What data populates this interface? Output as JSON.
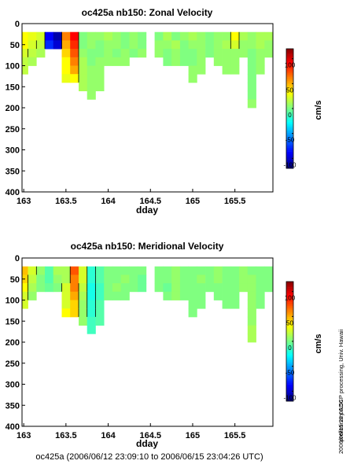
{
  "chart_data": [
    {
      "type": "heatmap",
      "title": "oc425a nb150: Zonal Velocity",
      "xlabel": "dday",
      "ylabel": "",
      "x_ticks": [
        "163",
        "163.5",
        "164",
        "164.5",
        "165",
        "165.5"
      ],
      "y_ticks": [
        "0",
        "50",
        "100",
        "150",
        "200",
        "250",
        "300",
        "350",
        "400"
      ],
      "xlim": [
        162.98,
        165.95
      ],
      "ylim": [
        400,
        0
      ],
      "colorbar": {
        "label": "cm/s",
        "ticks": [
          "100",
          "50",
          "0",
          "-50",
          "-100"
        ],
        "range": [
          -120,
          120
        ]
      },
      "x": [
        163.0,
        163.1,
        163.2,
        163.3,
        163.4,
        163.5,
        163.6,
        163.7,
        163.8,
        163.9,
        164.0,
        164.1,
        164.2,
        164.3,
        164.4,
        164.5,
        164.6,
        164.7,
        164.8,
        164.9,
        165.0,
        165.1,
        165.2,
        165.3,
        165.4,
        165.5,
        165.6,
        165.7,
        165.8,
        165.9
      ],
      "depth": [
        30,
        50,
        70,
        90,
        110,
        130,
        150,
        170,
        190,
        210
      ],
      "values": [
        [
          30,
          25,
          20,
          -90,
          -110,
          60,
          90,
          0,
          5,
          5,
          10,
          5,
          0,
          5,
          0,
          null,
          0,
          10,
          0,
          5,
          10,
          5,
          0,
          5,
          5,
          30,
          10,
          5,
          10,
          10
        ],
        [
          30,
          20,
          15,
          -80,
          -100,
          50,
          80,
          0,
          5,
          0,
          5,
          5,
          0,
          5,
          0,
          null,
          5,
          5,
          10,
          0,
          5,
          5,
          0,
          5,
          10,
          20,
          5,
          5,
          10,
          5
        ],
        [
          20,
          15,
          10,
          null,
          null,
          40,
          70,
          5,
          0,
          0,
          5,
          0,
          5,
          0,
          5,
          null,
          5,
          0,
          5,
          0,
          0,
          5,
          0,
          5,
          5,
          5,
          5,
          0,
          5,
          5
        ],
        [
          15,
          10,
          null,
          null,
          null,
          30,
          60,
          10,
          0,
          5,
          5,
          5,
          5,
          null,
          null,
          null,
          null,
          0,
          5,
          0,
          0,
          5,
          null,
          5,
          5,
          5,
          null,
          0,
          5,
          null
        ],
        [
          15,
          null,
          null,
          null,
          null,
          30,
          50,
          10,
          5,
          5,
          null,
          null,
          null,
          null,
          null,
          null,
          null,
          null,
          null,
          null,
          5,
          5,
          null,
          null,
          5,
          5,
          null,
          0,
          5,
          null
        ],
        [
          null,
          null,
          null,
          null,
          null,
          25,
          30,
          10,
          5,
          5,
          null,
          null,
          null,
          null,
          null,
          null,
          null,
          null,
          null,
          null,
          5,
          null,
          null,
          null,
          null,
          null,
          null,
          0,
          null,
          null
        ],
        [
          null,
          null,
          null,
          null,
          null,
          null,
          null,
          10,
          5,
          5,
          null,
          null,
          null,
          null,
          null,
          null,
          null,
          null,
          null,
          null,
          null,
          null,
          null,
          null,
          null,
          null,
          null,
          0,
          null,
          null
        ],
        [
          null,
          null,
          null,
          null,
          null,
          null,
          null,
          null,
          5,
          null,
          null,
          null,
          null,
          null,
          null,
          null,
          null,
          null,
          null,
          null,
          null,
          null,
          null,
          null,
          null,
          null,
          null,
          0,
          null,
          null
        ],
        [
          null,
          null,
          null,
          null,
          null,
          null,
          null,
          null,
          null,
          null,
          null,
          null,
          null,
          null,
          null,
          null,
          null,
          null,
          null,
          null,
          null,
          null,
          null,
          null,
          null,
          null,
          null,
          5,
          null,
          null
        ],
        [
          null,
          null,
          null,
          null,
          null,
          null,
          null,
          null,
          null,
          null,
          null,
          null,
          null,
          null,
          null,
          null,
          null,
          null,
          null,
          null,
          null,
          null,
          null,
          null,
          null,
          null,
          null,
          null,
          null,
          null
        ]
      ]
    },
    {
      "type": "heatmap",
      "title": "oc425a nb150: Meridional Velocity",
      "xlabel": "dday",
      "ylabel": "",
      "x_ticks": [
        "163",
        "163.5",
        "164",
        "164.5",
        "165",
        "165.5"
      ],
      "y_ticks": [
        "0",
        "50",
        "100",
        "150",
        "200",
        "250",
        "300",
        "350",
        "400"
      ],
      "xlim": [
        162.98,
        165.95
      ],
      "ylim": [
        400,
        0
      ],
      "colorbar": {
        "label": "cm/s",
        "ticks": [
          "100",
          "50",
          "0",
          "-50",
          "-100"
        ],
        "range": [
          -120,
          120
        ]
      },
      "x": [
        163.0,
        163.1,
        163.2,
        163.3,
        163.4,
        163.5,
        163.6,
        163.7,
        163.8,
        163.9,
        164.0,
        164.1,
        164.2,
        164.3,
        164.4,
        164.5,
        164.6,
        164.7,
        164.8,
        164.9,
        165.0,
        165.1,
        165.2,
        165.3,
        165.4,
        165.5,
        165.6,
        165.7,
        165.8,
        165.9
      ],
      "depth": [
        30,
        50,
        70,
        90,
        110,
        130,
        150,
        170,
        190,
        210
      ],
      "values": [
        [
          45,
          20,
          5,
          -10,
          10,
          10,
          70,
          20,
          -20,
          -10,
          0,
          0,
          0,
          0,
          0,
          null,
          0,
          0,
          5,
          0,
          0,
          0,
          0,
          5,
          0,
          0,
          5,
          0,
          0,
          0
        ],
        [
          40,
          15,
          0,
          -10,
          5,
          10,
          60,
          20,
          -20,
          -10,
          0,
          0,
          5,
          0,
          -5,
          null,
          0,
          0,
          5,
          0,
          0,
          5,
          0,
          5,
          0,
          0,
          5,
          5,
          0,
          0
        ],
        [
          30,
          10,
          0,
          -5,
          0,
          20,
          60,
          15,
          -25,
          -15,
          0,
          5,
          0,
          0,
          -5,
          null,
          0,
          -5,
          5,
          0,
          0,
          0,
          0,
          0,
          0,
          0,
          5,
          5,
          0,
          0
        ],
        [
          20,
          5,
          null,
          null,
          null,
          20,
          50,
          10,
          -25,
          -15,
          0,
          0,
          0,
          null,
          null,
          null,
          null,
          0,
          5,
          0,
          0,
          0,
          null,
          0,
          0,
          0,
          null,
          5,
          0,
          null
        ],
        [
          20,
          null,
          null,
          null,
          null,
          20,
          40,
          5,
          -20,
          -10,
          null,
          null,
          null,
          null,
          null,
          null,
          null,
          null,
          null,
          null,
          0,
          0,
          null,
          null,
          0,
          0,
          null,
          5,
          0,
          null
        ],
        [
          null,
          null,
          null,
          null,
          null,
          30,
          40,
          5,
          -20,
          -10,
          null,
          null,
          null,
          null,
          null,
          null,
          null,
          null,
          null,
          null,
          0,
          null,
          null,
          null,
          null,
          null,
          null,
          5,
          null,
          null
        ],
        [
          null,
          null,
          null,
          null,
          null,
          null,
          null,
          5,
          -15,
          -10,
          null,
          null,
          null,
          null,
          null,
          null,
          null,
          null,
          null,
          null,
          null,
          null,
          null,
          null,
          null,
          null,
          null,
          5,
          null,
          null
        ],
        [
          null,
          null,
          null,
          null,
          null,
          null,
          null,
          null,
          -15,
          null,
          null,
          null,
          null,
          null,
          null,
          null,
          null,
          null,
          null,
          null,
          null,
          null,
          null,
          null,
          null,
          null,
          null,
          10,
          null,
          null
        ],
        [
          null,
          null,
          null,
          null,
          null,
          null,
          null,
          null,
          null,
          null,
          null,
          null,
          null,
          null,
          null,
          null,
          null,
          null,
          null,
          null,
          null,
          null,
          null,
          null,
          null,
          null,
          null,
          10,
          null,
          null
        ],
        [
          null,
          null,
          null,
          null,
          null,
          null,
          null,
          null,
          null,
          null,
          null,
          null,
          null,
          null,
          null,
          null,
          null,
          null,
          null,
          null,
          null,
          null,
          null,
          null,
          null,
          null,
          null,
          null,
          null,
          null
        ]
      ]
    }
  ],
  "side_note": "preliminary ADCP processing,   Univ. Hawaii",
  "side_timestamp": "2006/06/15 23:06:56",
  "footer": "oc425a (2006/06/12 23:09:10 to 2006/06/15 23:04:26 UTC)"
}
